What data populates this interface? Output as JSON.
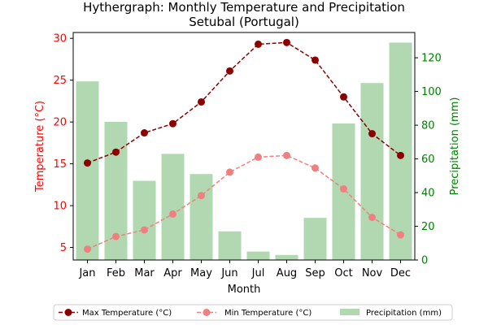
{
  "chart_data": {
    "type": "line",
    "title": "Hythergraph: Monthly Temperature and Precipitation",
    "subtitle": "Setubal (Portugal)",
    "xlabel": "Month",
    "ylabel_left": "Temperature (°C)",
    "ylabel_right": "Precipitation (mm)",
    "categories": [
      "Jan",
      "Feb",
      "Mar",
      "Apr",
      "May",
      "Jun",
      "Jul",
      "Aug",
      "Sep",
      "Oct",
      "Nov",
      "Dec"
    ],
    "ylim_left": [
      3.5,
      30.7
    ],
    "ylim_right": [
      0,
      135
    ],
    "yticks_left": [
      5,
      10,
      15,
      20,
      25,
      30
    ],
    "yticks_right": [
      0,
      20,
      40,
      60,
      80,
      100,
      120
    ],
    "series": [
      {
        "name": "Max Temperature (°C)",
        "kind": "line",
        "axis": "left",
        "color": "#8b0000",
        "dash": "dashed",
        "marker": "circle",
        "values": [
          15.1,
          16.4,
          18.7,
          19.8,
          22.4,
          26.1,
          29.3,
          29.5,
          27.4,
          23.0,
          18.6,
          16.0
        ]
      },
      {
        "name": "Min Temperature (°C)",
        "kind": "line",
        "axis": "left",
        "color": "#f08080",
        "dash": "dashed",
        "marker": "circle",
        "values": [
          4.8,
          6.3,
          7.1,
          9.0,
          11.2,
          14.0,
          15.8,
          16.0,
          14.5,
          12.0,
          8.6,
          6.5
        ]
      },
      {
        "name": "Precipitation (mm)",
        "kind": "bar",
        "axis": "right",
        "color": "#b2d8b2",
        "values": [
          106,
          82,
          47,
          63,
          51,
          17,
          5,
          3,
          25,
          81,
          105,
          129
        ]
      }
    ],
    "legend_position": "bottom",
    "grid": false,
    "left_axis_color": "#ff0000",
    "right_axis_color": "#008000"
  }
}
